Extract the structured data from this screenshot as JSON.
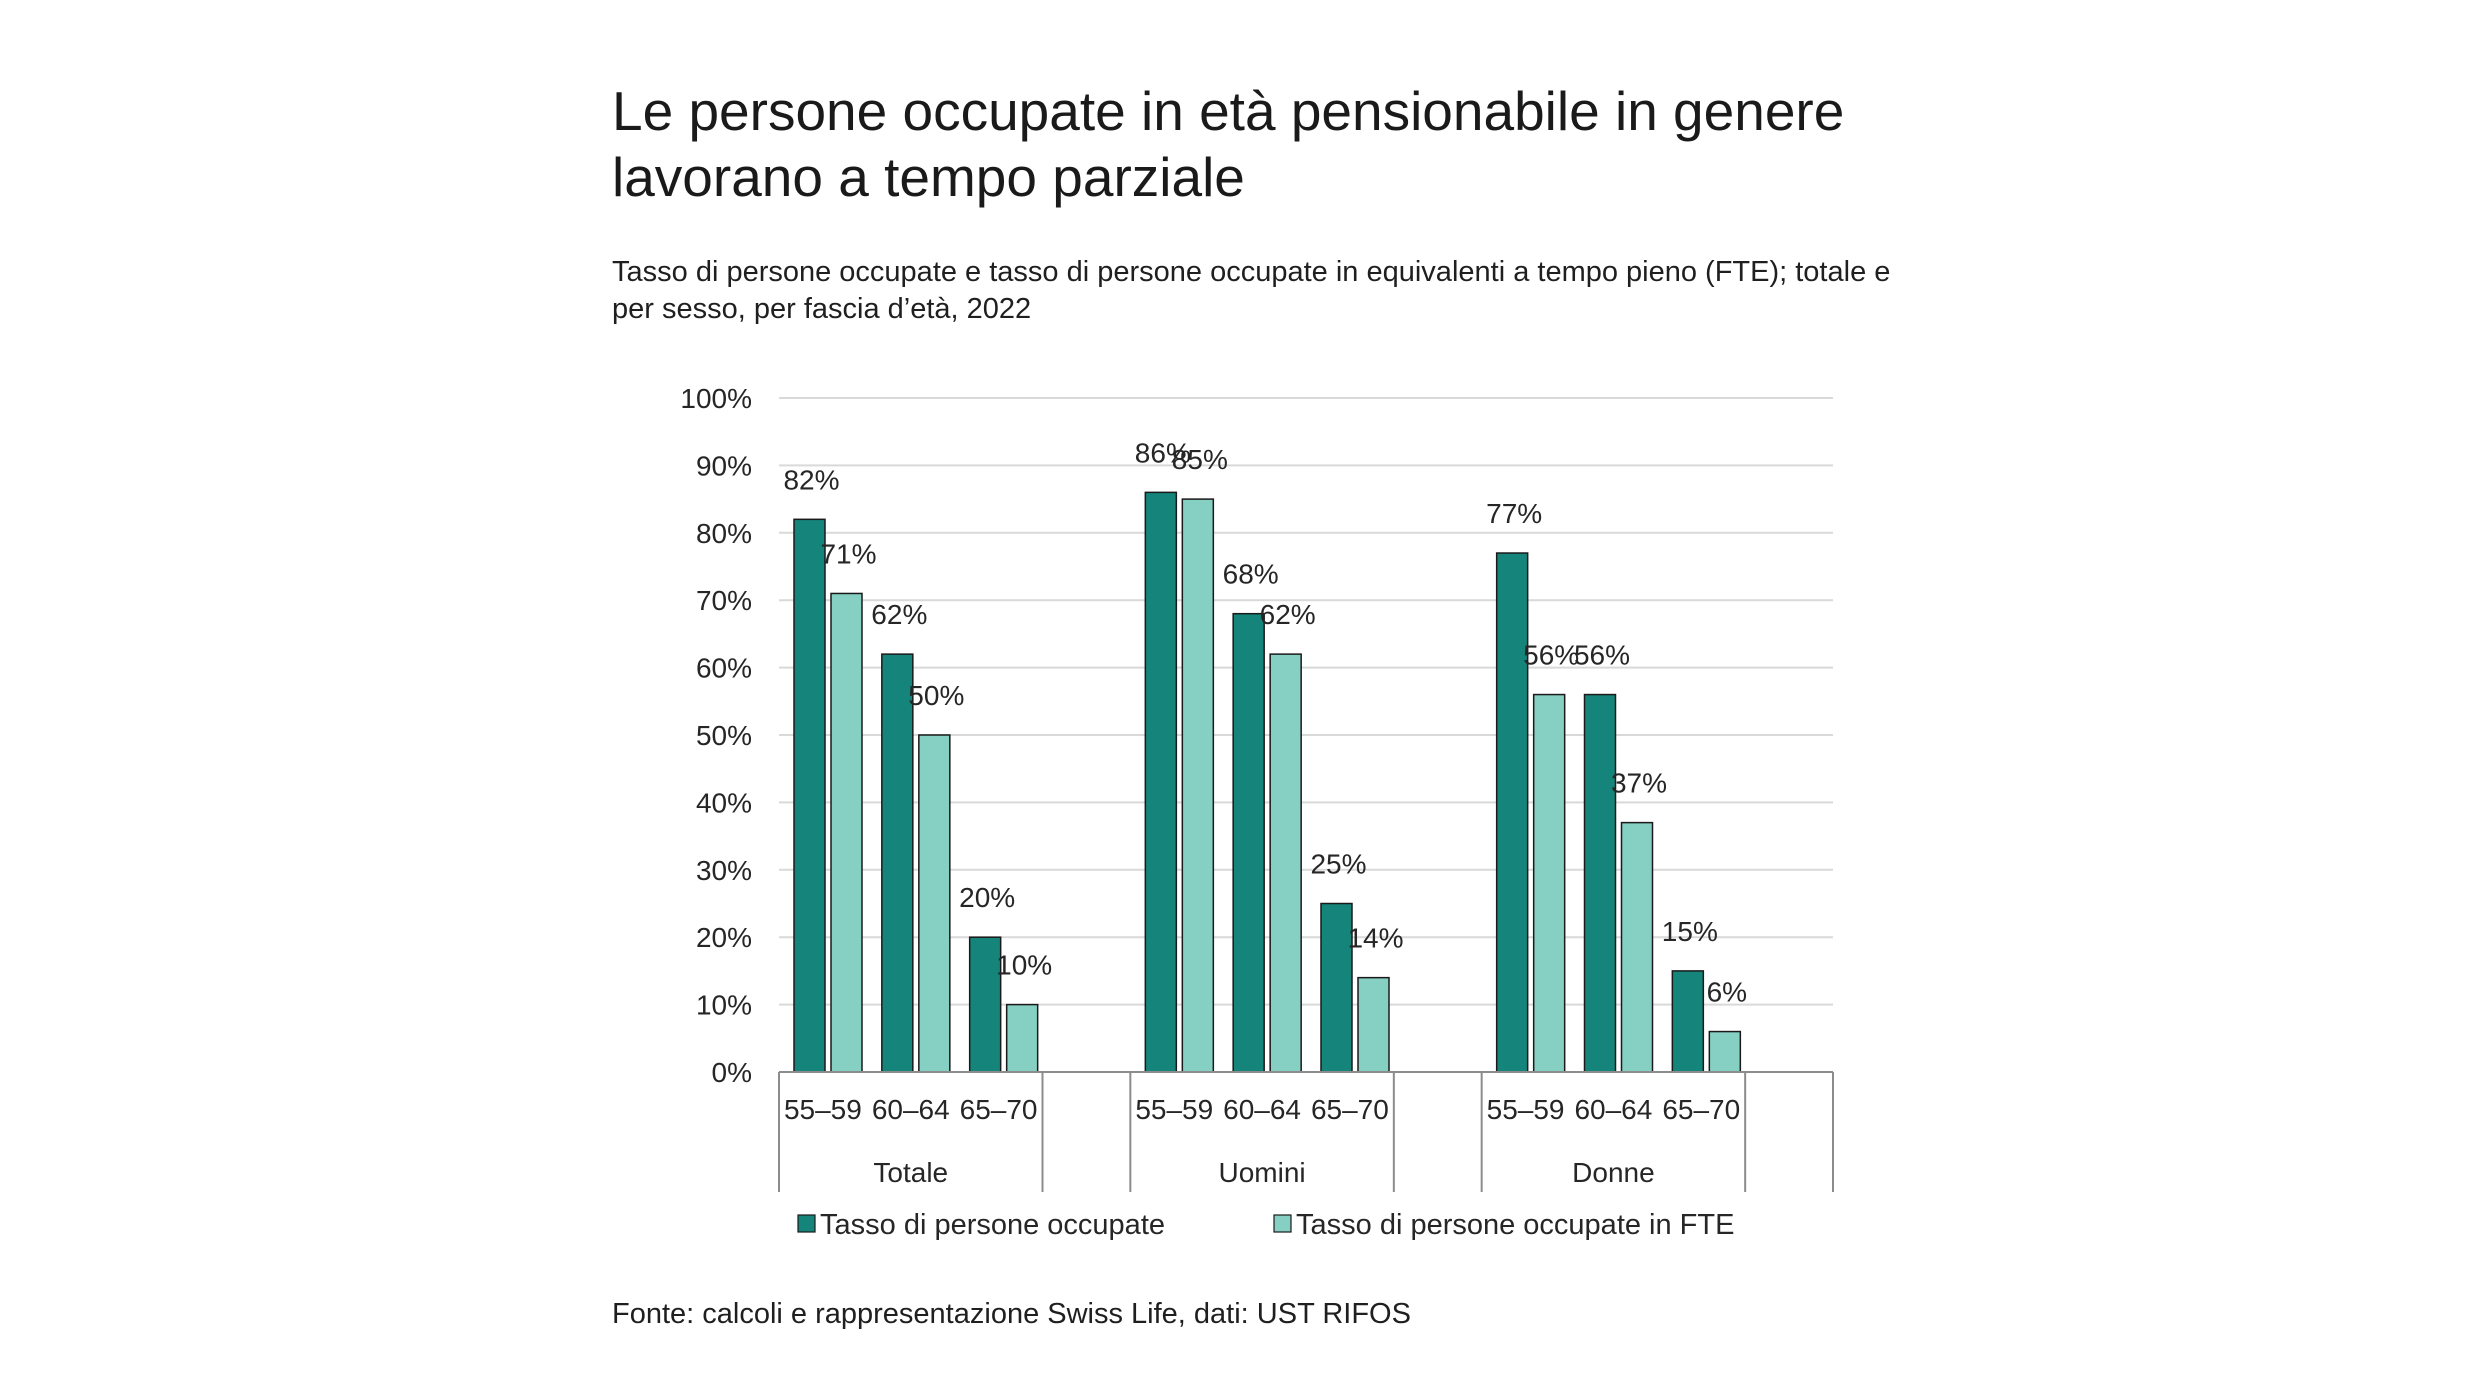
{
  "title": "Le persone occupate in età pensionabile in genere lavorano a tempo parziale",
  "subtitle": "Tasso di persone occupate e tasso di persone occupate in equivalenti a tempo pieno (FTE); totale e per sesso, per fascia d’età, 2022",
  "source": "Fonte: calcoli e rappresentazione Swiss Life, dati: UST RIFOS",
  "colors": {
    "occupate": "#15847a",
    "fte": "#86cfc3",
    "grid": "#d9d9d9",
    "axis": "#8c8c8c"
  },
  "chart_data": {
    "type": "bar",
    "groups": [
      {
        "name": "Totale",
        "categories": [
          "55–59",
          "60–64",
          "65–70"
        ]
      },
      {
        "name": "Uomini",
        "categories": [
          "55–59",
          "60–64",
          "65–70"
        ]
      },
      {
        "name": "Donne",
        "categories": [
          "55–59",
          "60–64",
          "65–70"
        ]
      }
    ],
    "series": [
      {
        "name": "Tasso di persone occupate",
        "values": [
          82,
          62,
          20,
          86,
          68,
          25,
          77,
          56,
          15
        ],
        "labels": [
          "82%",
          "62%",
          "20%",
          "86%",
          "68%",
          "25%",
          "77%",
          "56%",
          "15%"
        ]
      },
      {
        "name": "Tasso di persone occupate in FTE",
        "values": [
          71,
          50,
          10,
          85,
          62,
          14,
          56,
          37,
          6
        ],
        "labels": [
          "71%",
          "50%",
          "10%",
          "85%",
          "62%",
          "14%",
          "56%",
          "37%",
          "6%"
        ]
      }
    ],
    "ylim": [
      0,
      100
    ],
    "yticks": [
      "0%",
      "10%",
      "20%",
      "30%",
      "40%",
      "50%",
      "60%",
      "70%",
      "80%",
      "90%",
      "100%"
    ],
    "grid": true,
    "legend_position": "bottom"
  }
}
